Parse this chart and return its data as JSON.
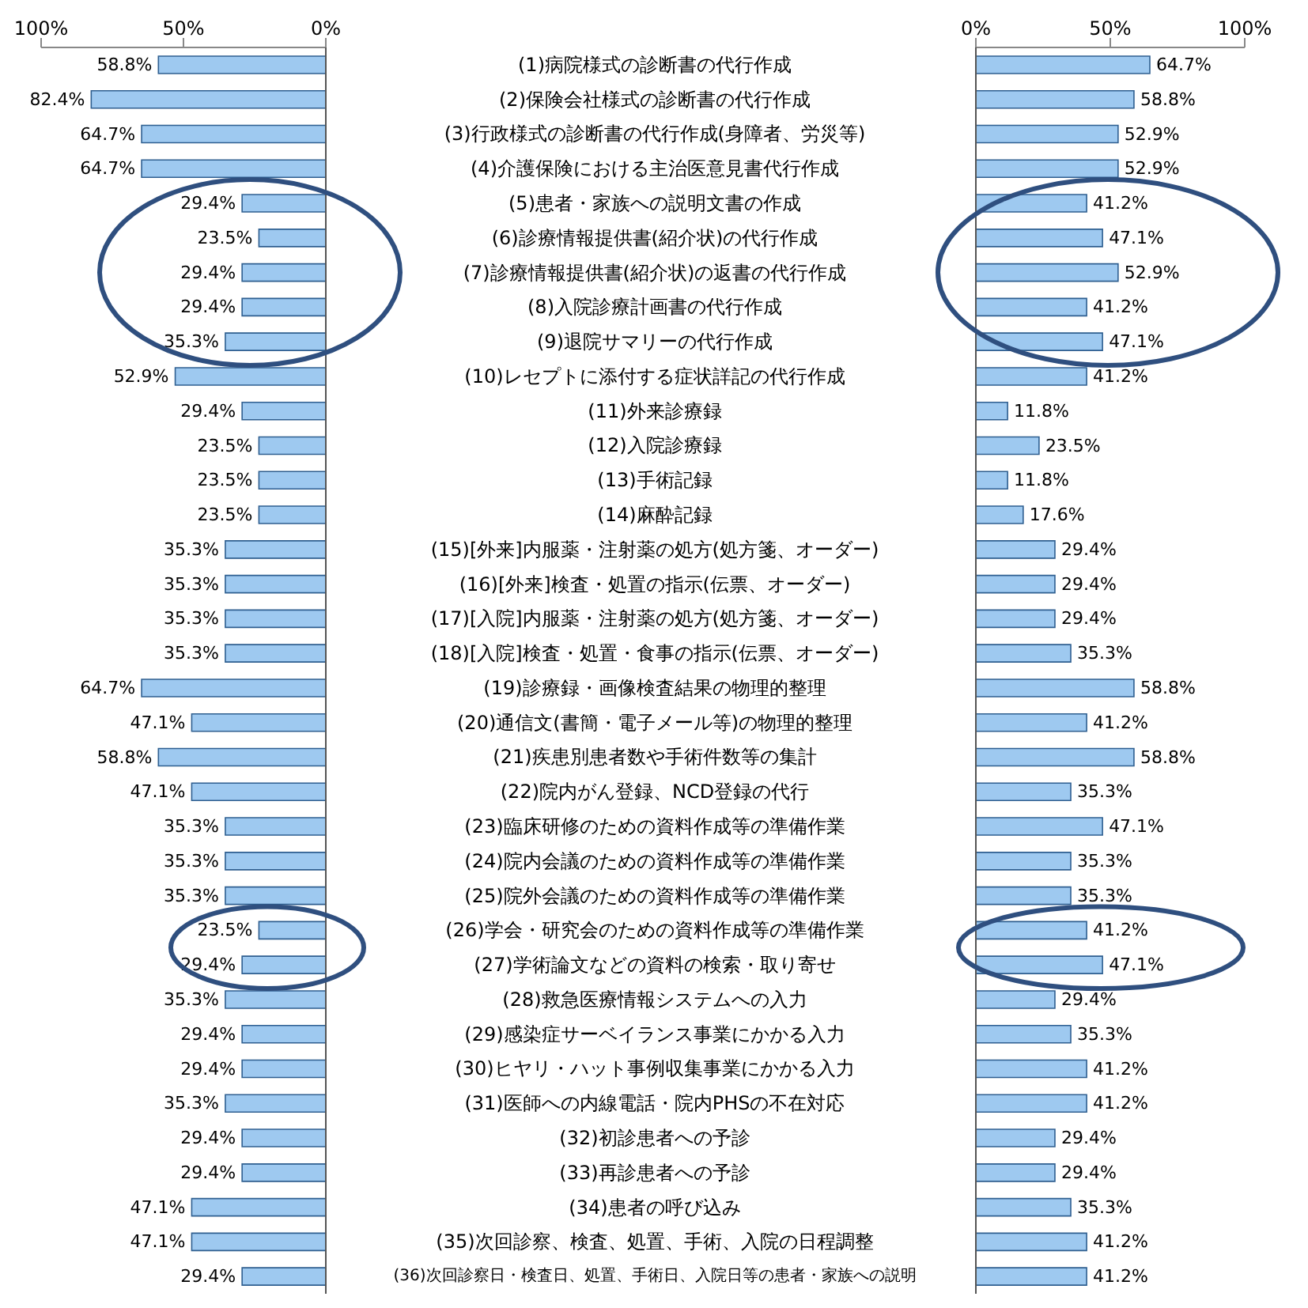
{
  "chart_data": [
    {
      "type": "bar",
      "orientation": "horizontal",
      "color": "#9ec9f0",
      "categories": [
        "(1)病院様式の診断書の代行作成",
        "(2)保険会社様式の診断書の代行作成",
        "(3)行政様式の診断書の代行作成(身障者、労災等)",
        "(4)介護保険における主治医意見書代行作成",
        "(5)患者・家族への説明文書の作成",
        "(6)診療情報提供書(紹介状)の代行作成",
        "(7)診療情報提供書(紹介状)の返書の代行作成",
        "(8)入院診療計画書の代行作成",
        "(9)退院サマリーの代行作成",
        "(10)レセプトに添付する症状詳記の代行作成",
        "(11)外来診療録",
        "(12)入院診療録",
        "(13)手術記録",
        "(14)麻酔記録",
        "(15)[外来]内服薬・注射薬の処方(処方箋、オーダー)",
        "(16)[外来]検査・処置の指示(伝票、オーダー)",
        "(17)[入院]内服薬・注射薬の処方(処方箋、オーダー)",
        "(18)[入院]検査・処置・食事の指示(伝票、オーダー)",
        "(19)診療録・画像検査結果の物理的整理",
        "(20)通信文(書簡・電子メール等)の物理的整理",
        "(21)疾患別患者数や手術件数等の集計",
        "(22)院内がん登録、NCD登録の代行",
        "(23)臨床研修のための資料作成等の準備作業",
        "(24)院内会議のための資料作成等の準備作業",
        "(25)院外会議のための資料作成等の準備作業",
        "(26)学会・研究会のための資料作成等の準備作業",
        "(27)学術論文などの資料の検索・取り寄せ",
        "(28)救急医療情報システムへの入力",
        "(29)感染症サーベイランス事業にかかる入力",
        "(30)ヒヤリ・ハット事例収集事業にかかる入力",
        "(31)医師への内線電話・院内PHSの不在対応",
        "(32)初診患者への予診",
        "(33)再診患者への予診",
        "(34)患者の呼び込み",
        "(35)次回診察、検査、処置、手術、入院の日程調整",
        "(36)次回診察日・検査日、処置、手術日、入院日等の患者・家族への説明"
      ],
      "values": [
        58.8,
        82.4,
        64.7,
        64.7,
        29.4,
        23.5,
        29.4,
        29.4,
        35.3,
        52.9,
        29.4,
        23.5,
        23.5,
        23.5,
        35.3,
        35.3,
        35.3,
        35.3,
        64.7,
        47.1,
        58.8,
        47.1,
        35.3,
        35.3,
        35.3,
        23.5,
        29.4,
        35.3,
        29.4,
        29.4,
        35.3,
        29.4,
        29.4,
        47.1,
        47.1,
        29.4
      ],
      "value_labels": [
        "58.8%",
        "82.4%",
        "64.7%",
        "64.7%",
        "29.4%",
        "23.5%",
        "29.4%",
        "29.4%",
        "35.3%",
        "52.9%",
        "29.4%",
        "23.5%",
        "23.5%",
        "23.5%",
        "35.3%",
        "35.3%",
        "35.3%",
        "35.3%",
        "64.7%",
        "47.1%",
        "58.8%",
        "47.1%",
        "35.3%",
        "35.3%",
        "35.3%",
        "23.5%",
        "29.4%",
        "35.3%",
        "29.4%",
        "29.4%",
        "35.3%",
        "29.4%",
        "29.4%",
        "47.1%",
        "47.1%",
        "29.4%"
      ],
      "xlim": [
        100,
        0
      ],
      "xticks": [
        {
          "value": 100,
          "label": "100%"
        },
        {
          "value": 50,
          "label": "50%"
        },
        {
          "value": 0,
          "label": "0%"
        }
      ]
    },
    {
      "type": "bar",
      "orientation": "horizontal",
      "color": "#9ec9f0",
      "tick_labels": "x",
      "categories": [
        null,
        null,
        null,
        null,
        null,
        null,
        null,
        null,
        null,
        null,
        null,
        null,
        null,
        null,
        null,
        null,
        null,
        null,
        null,
        null,
        null,
        null,
        null,
        null,
        null,
        null,
        null,
        null,
        null,
        null,
        null,
        null,
        null,
        null,
        null,
        null
      ],
      "values": [
        64.7,
        58.8,
        52.9,
        52.9,
        41.2,
        47.1,
        52.9,
        41.2,
        47.1,
        41.2,
        11.8,
        23.5,
        11.8,
        17.6,
        29.4,
        29.4,
        29.4,
        35.3,
        58.8,
        41.2,
        58.8,
        35.3,
        47.1,
        35.3,
        35.3,
        41.2,
        47.1,
        29.4,
        35.3,
        41.2,
        41.2,
        29.4,
        29.4,
        35.3,
        41.2,
        41.2
      ],
      "value_labels": [
        "64.7%",
        "58.8%",
        "52.9%",
        "52.9%",
        "41.2%",
        "47.1%",
        "52.9%",
        "41.2%",
        "47.1%",
        "41.2%",
        "11.8%",
        "23.5%",
        "11.8%",
        "17.6%",
        "29.4%",
        "29.4%",
        "29.4%",
        "35.3%",
        "58.8%",
        "41.2%",
        "58.8%",
        "35.3%",
        "47.1%",
        "35.3%",
        "35.3%",
        "41.2%",
        "47.1%",
        "29.4%",
        "35.3%",
        "41.2%",
        "41.2%",
        "29.4%",
        "29.4%",
        "35.3%",
        "41.2%",
        "41.2%"
      ],
      "xlim": [
        0,
        100
      ],
      "xticks": [
        {
          "value": 0,
          "label": "0%"
        },
        {
          "value": 50,
          "label": "50%"
        },
        {
          "value": 100,
          "label": "100%"
        }
      ]
    }
  ]
}
